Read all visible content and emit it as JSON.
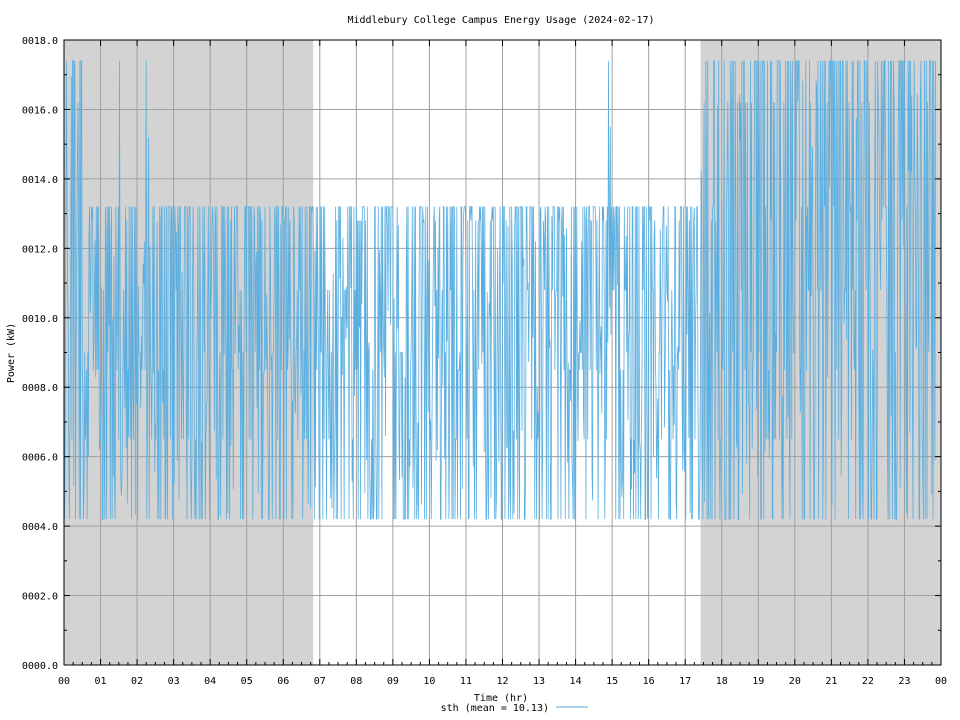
{
  "chart_data": {
    "type": "line",
    "title": "Middlebury College Campus Energy Usage (2024-02-17)",
    "xlabel": "Time (hr)",
    "ylabel": "Power (kW)",
    "xlim": [
      0,
      24
    ],
    "ylim": [
      0,
      18
    ],
    "x_ticks": [
      "00",
      "01",
      "02",
      "03",
      "04",
      "05",
      "06",
      "07",
      "08",
      "09",
      "10",
      "11",
      "12",
      "13",
      "14",
      "15",
      "16",
      "17",
      "18",
      "19",
      "20",
      "21",
      "22",
      "23",
      "00"
    ],
    "y_ticks": [
      "0000.0",
      "0002.0",
      "0004.0",
      "0006.0",
      "0008.0",
      "0010.0",
      "0012.0",
      "0014.0",
      "0016.0",
      "0018.0"
    ],
    "grid": true,
    "shaded_intervals_hr": [
      [
        0,
        6.82
      ],
      [
        17.42,
        24
      ]
    ],
    "legend_position": "bottom-center",
    "series": [
      {
        "name": "sth (mean = 10.13)",
        "color": "#5aaee0",
        "sample_interval_min": 1,
        "levels": [
          4.2,
          6.5,
          8.5,
          9.0,
          10.8,
          12.8,
          13.2,
          16.2,
          17.4
        ],
        "segments": [
          {
            "x": [
              0,
              0.5
            ],
            "range": [
              4.2,
              17.4
            ],
            "mean": 11.2
          },
          {
            "x": [
              0.5,
              6.82
            ],
            "range": [
              4.2,
              13.2
            ],
            "mean": 10.0
          },
          {
            "x": [
              6.82,
              17.42
            ],
            "range": [
              4.2,
              13.2
            ],
            "mean": 9.2
          },
          {
            "x": [
              17.42,
              24
            ],
            "range": [
              4.2,
              17.4
            ],
            "mean": 11.5
          }
        ],
        "spikes": [
          {
            "x": 1.52,
            "y": 17.4
          },
          {
            "x": 2.25,
            "y": 17.4
          },
          {
            "x": 2.32,
            "y": 15.2
          },
          {
            "x": 14.9,
            "y": 17.4
          },
          {
            "x": 14.95,
            "y": 15.5
          }
        ],
        "mean": 10.13
      }
    ]
  }
}
